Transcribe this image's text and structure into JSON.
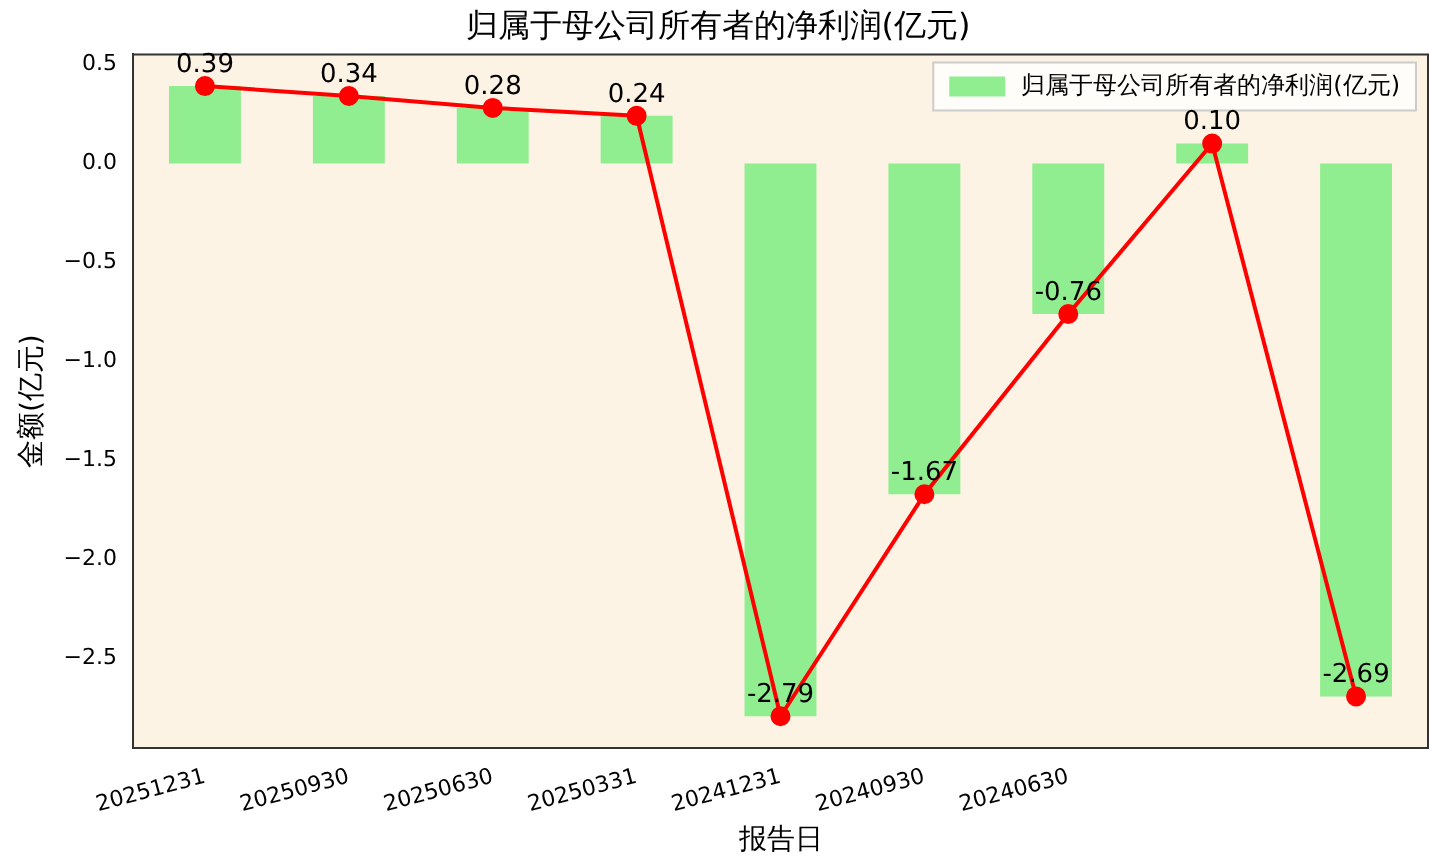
{
  "chart_data": {
    "type": "bar",
    "title": "归属于母公司所有者的净利润(亿元)",
    "xlabel": "报告日",
    "ylabel": "金额(亿元)",
    "categories": [
      "20251231",
      "20250930",
      "20250630",
      "20250331",
      "20241231",
      "20240930",
      "20240630",
      null,
      null
    ],
    "series": [
      {
        "name": "归属于母公司所有者的净利润(亿元)",
        "color": "#90ee90",
        "values": [
          0.39,
          0.34,
          0.28,
          0.24,
          -2.79,
          -1.67,
          -0.76,
          0.1,
          -2.69
        ]
      },
      {
        "type": "line",
        "color": "#ff0000",
        "marker": "circle",
        "values": [
          0.39,
          0.34,
          0.28,
          0.24,
          -2.79,
          -1.67,
          -0.76,
          0.1,
          -2.69
        ],
        "value_labels": [
          "0.39",
          "0.34",
          "0.28",
          "0.24",
          "-2.79",
          "-1.67",
          "-0.76",
          "0.10",
          "-2.69"
        ]
      }
    ],
    "ylim": [
      -2.95,
      0.55
    ],
    "yticks": [
      {
        "value": -2.5,
        "label": "−2.5"
      },
      {
        "value": -2.0,
        "label": "−2.0"
      },
      {
        "value": -1.5,
        "label": "−1.5"
      },
      {
        "value": -1.0,
        "label": "−1.0"
      },
      {
        "value": -0.5,
        "label": "−0.5"
      },
      {
        "value": 0.0,
        "label": "0.0"
      },
      {
        "value": 0.5,
        "label": "0.5"
      }
    ],
    "legend": "top right",
    "grid": false
  }
}
